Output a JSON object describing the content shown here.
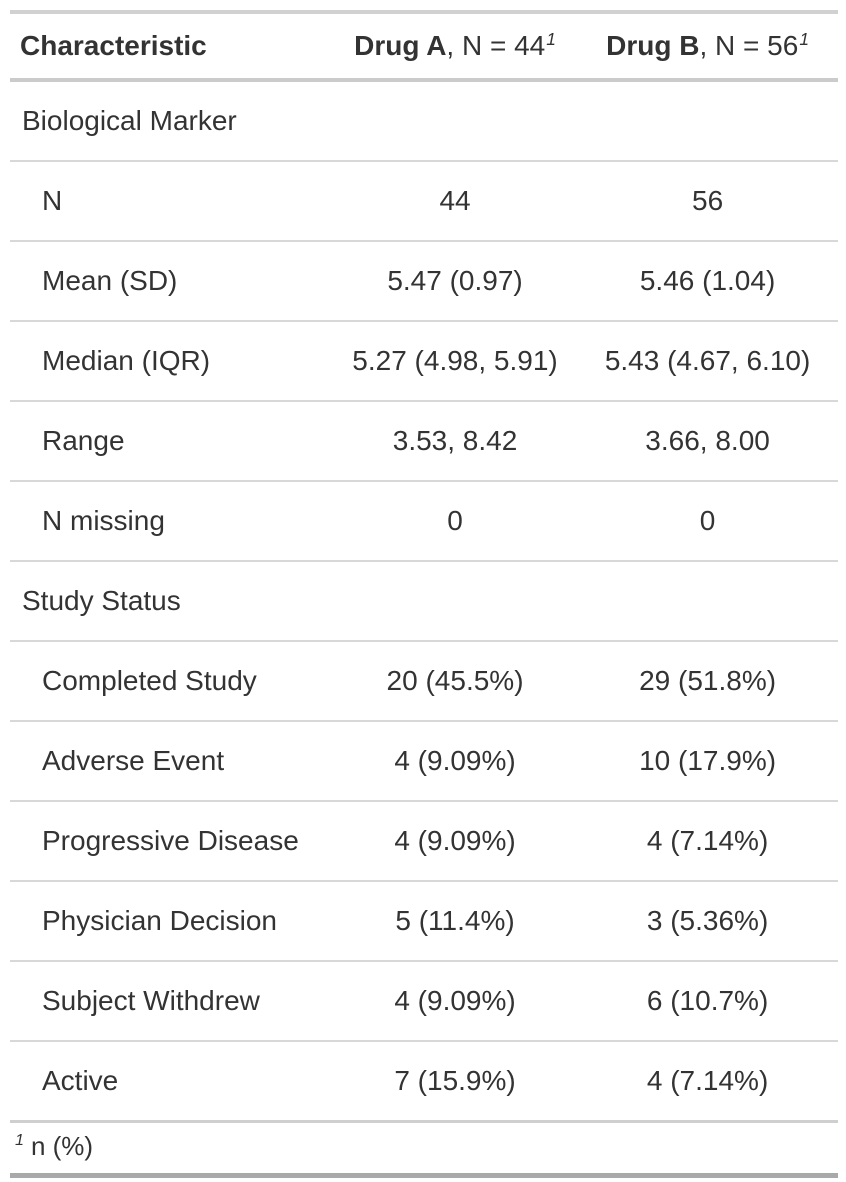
{
  "colors": {
    "text": "#333333",
    "border_light": "#D3D3D3",
    "border_dark": "#A8A8A8",
    "background": "#FFFFFF"
  },
  "table": {
    "header": {
      "characteristic": "Characteristic",
      "drug_a": {
        "name": "Drug A",
        "rest": ", N = 44",
        "footnote_mark": "1"
      },
      "drug_b": {
        "name": "Drug B",
        "rest": ", N = 56",
        "footnote_mark": "1"
      }
    },
    "rows": [
      {
        "type": "group",
        "label": "Biological Marker",
        "drug_a": "",
        "drug_b": ""
      },
      {
        "type": "item",
        "label": "N",
        "drug_a": "44",
        "drug_b": "56"
      },
      {
        "type": "item",
        "label": "Mean (SD)",
        "drug_a": "5.47 (0.97)",
        "drug_b": "5.46 (1.04)"
      },
      {
        "type": "item",
        "label": "Median (IQR)",
        "drug_a": "5.27 (4.98, 5.91)",
        "drug_b": "5.43 (4.67, 6.10)"
      },
      {
        "type": "item",
        "label": "Range",
        "drug_a": "3.53, 8.42",
        "drug_b": "3.66, 8.00"
      },
      {
        "type": "item",
        "label": "N missing",
        "drug_a": "0",
        "drug_b": "0"
      },
      {
        "type": "group",
        "label": "Study Status",
        "drug_a": "",
        "drug_b": ""
      },
      {
        "type": "item",
        "label": "Completed Study",
        "drug_a": "20 (45.5%)",
        "drug_b": "29 (51.8%)"
      },
      {
        "type": "item",
        "label": "Adverse Event",
        "drug_a": "4 (9.09%)",
        "drug_b": "10 (17.9%)"
      },
      {
        "type": "item",
        "label": "Progressive Disease",
        "drug_a": "4 (9.09%)",
        "drug_b": "4 (7.14%)"
      },
      {
        "type": "item",
        "label": "Physician Decision",
        "drug_a": "5 (11.4%)",
        "drug_b": "3 (5.36%)"
      },
      {
        "type": "item",
        "label": "Subject Withdrew",
        "drug_a": "4 (9.09%)",
        "drug_b": "6 (10.7%)"
      },
      {
        "type": "item",
        "label": "Active",
        "drug_a": "7 (15.9%)",
        "drug_b": "4 (7.14%)"
      }
    ],
    "footnote": {
      "mark": "1",
      "text": "n (%)"
    }
  },
  "chart_data": {
    "type": "table",
    "title": "",
    "columns": [
      "Characteristic",
      "Drug A, N = 44",
      "Drug B, N = 56"
    ],
    "rows": [
      [
        "Biological Marker",
        "",
        ""
      ],
      [
        "N",
        "44",
        "56"
      ],
      [
        "Mean (SD)",
        "5.47 (0.97)",
        "5.46 (1.04)"
      ],
      [
        "Median (IQR)",
        "5.27 (4.98, 5.91)",
        "5.43 (4.67, 6.10)"
      ],
      [
        "Range",
        "3.53, 8.42",
        "3.66, 8.00"
      ],
      [
        "N missing",
        "0",
        "0"
      ],
      [
        "Study Status",
        "",
        ""
      ],
      [
        "Completed Study",
        "20 (45.5%)",
        "29 (51.8%)"
      ],
      [
        "Adverse Event",
        "4 (9.09%)",
        "10 (17.9%)"
      ],
      [
        "Progressive Disease",
        "4 (9.09%)",
        "4 (7.14%)"
      ],
      [
        "Physician Decision",
        "5 (11.4%)",
        "3 (5.36%)"
      ],
      [
        "Subject Withdrew",
        "4 (9.09%)",
        "6 (10.7%)"
      ],
      [
        "Active",
        "7 (15.9%)",
        "4 (7.14%)"
      ]
    ],
    "footnote": "1 n (%)",
    "layout_hints": {
      "group_rows": [
        0,
        6
      ],
      "value_alignment": "center",
      "label_alignment": "left"
    }
  }
}
